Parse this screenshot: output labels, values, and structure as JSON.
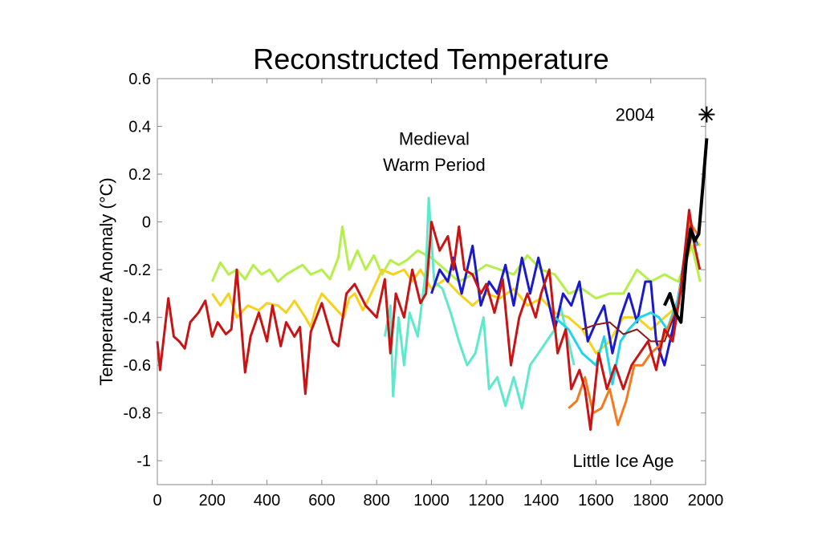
{
  "chart_data": {
    "type": "line",
    "title": "Reconstructed Temperature",
    "xlabel": "",
    "ylabel": "Temperature Anomaly (°C)",
    "xlim": [
      0,
      2000
    ],
    "ylim": [
      -1.1,
      0.6
    ],
    "xticks": [
      0,
      200,
      400,
      600,
      800,
      1000,
      1200,
      1400,
      1600,
      1800,
      2000
    ],
    "yticks": [
      0.6,
      0.4,
      0.2,
      0,
      -0.2,
      -0.4,
      -0.6,
      -0.8,
      -1
    ],
    "ytick_labels": [
      "0.6",
      "0.4",
      "0.2",
      "0",
      "-0.2",
      "-0.4",
      "-0.6",
      "-0.8",
      "-1"
    ],
    "grid": false,
    "annotations": [
      {
        "text": "Medieval",
        "x": 1010,
        "y": 0.35
      },
      {
        "text": "Warm Period",
        "x": 1010,
        "y": 0.24
      },
      {
        "text": "Little Ice Age",
        "x": 1700,
        "y": -1.0
      },
      {
        "text": "2004",
        "x": 1870,
        "y": 0.45
      }
    ],
    "marker": {
      "label": "2004",
      "x": 2004,
      "y": 0.45,
      "symbol": "asterisk"
    },
    "series": [
      {
        "name": "light-green",
        "color": "#b5f04a",
        "points": [
          [
            200,
            -0.25
          ],
          [
            230,
            -0.17
          ],
          [
            260,
            -0.22
          ],
          [
            290,
            -0.2
          ],
          [
            320,
            -0.24
          ],
          [
            350,
            -0.18
          ],
          [
            380,
            -0.22
          ],
          [
            410,
            -0.2
          ],
          [
            440,
            -0.25
          ],
          [
            470,
            -0.22
          ],
          [
            500,
            -0.2
          ],
          [
            530,
            -0.18
          ],
          [
            560,
            -0.22
          ],
          [
            600,
            -0.2
          ],
          [
            630,
            -0.24
          ],
          [
            660,
            -0.15
          ],
          [
            675,
            -0.02
          ],
          [
            700,
            -0.2
          ],
          [
            730,
            -0.12
          ],
          [
            760,
            -0.2
          ],
          [
            790,
            -0.14
          ],
          [
            820,
            -0.22
          ],
          [
            850,
            -0.16
          ],
          [
            880,
            -0.18
          ],
          [
            910,
            -0.16
          ],
          [
            950,
            -0.12
          ],
          [
            1000,
            -0.15
          ],
          [
            1050,
            -0.2
          ],
          [
            1100,
            -0.25
          ],
          [
            1150,
            -0.22
          ],
          [
            1200,
            -0.18
          ],
          [
            1250,
            -0.2
          ],
          [
            1300,
            -0.22
          ],
          [
            1350,
            -0.14
          ],
          [
            1400,
            -0.2
          ],
          [
            1450,
            -0.22
          ],
          [
            1500,
            -0.3
          ],
          [
            1550,
            -0.28
          ],
          [
            1600,
            -0.32
          ],
          [
            1650,
            -0.3
          ],
          [
            1700,
            -0.3
          ],
          [
            1750,
            -0.2
          ],
          [
            1800,
            -0.25
          ],
          [
            1850,
            -0.22
          ],
          [
            1900,
            -0.25
          ],
          [
            1950,
            -0.1
          ],
          [
            1980,
            -0.25
          ]
        ]
      },
      {
        "name": "yellow",
        "color": "#f7d21c",
        "points": [
          [
            200,
            -0.3
          ],
          [
            230,
            -0.35
          ],
          [
            260,
            -0.3
          ],
          [
            290,
            -0.4
          ],
          [
            330,
            -0.35
          ],
          [
            370,
            -0.37
          ],
          [
            400,
            -0.34
          ],
          [
            440,
            -0.35
          ],
          [
            470,
            -0.38
          ],
          [
            500,
            -0.33
          ],
          [
            540,
            -0.4
          ],
          [
            560,
            -0.44
          ],
          [
            580,
            -0.35
          ],
          [
            600,
            -0.3
          ],
          [
            640,
            -0.35
          ],
          [
            680,
            -0.4
          ],
          [
            700,
            -0.32
          ],
          [
            720,
            -0.3
          ],
          [
            750,
            -0.37
          ],
          [
            780,
            -0.3
          ],
          [
            820,
            -0.2
          ],
          [
            860,
            -0.22
          ],
          [
            900,
            -0.2
          ],
          [
            930,
            -0.25
          ],
          [
            960,
            -0.2
          ],
          [
            1000,
            -0.28
          ],
          [
            1050,
            -0.24
          ],
          [
            1100,
            -0.3
          ],
          [
            1150,
            -0.35
          ],
          [
            1200,
            -0.3
          ],
          [
            1250,
            -0.32
          ],
          [
            1300,
            -0.28
          ],
          [
            1350,
            -0.35
          ],
          [
            1400,
            -0.32
          ],
          [
            1450,
            -0.38
          ],
          [
            1500,
            -0.4
          ],
          [
            1550,
            -0.45
          ],
          [
            1600,
            -0.55
          ],
          [
            1650,
            -0.5
          ],
          [
            1700,
            -0.4
          ],
          [
            1750,
            -0.4
          ],
          [
            1800,
            -0.45
          ],
          [
            1850,
            -0.4
          ],
          [
            1900,
            -0.35
          ],
          [
            1950,
            -0.05
          ],
          [
            1980,
            -0.1
          ]
        ]
      },
      {
        "name": "turquoise",
        "color": "#5ee8cc",
        "points": [
          [
            830,
            -0.48
          ],
          [
            850,
            -0.35
          ],
          [
            860,
            -0.73
          ],
          [
            880,
            -0.4
          ],
          [
            900,
            -0.6
          ],
          [
            920,
            -0.38
          ],
          [
            950,
            -0.48
          ],
          [
            980,
            -0.2
          ],
          [
            990,
            0.1
          ],
          [
            1010,
            -0.25
          ],
          [
            1040,
            -0.28
          ],
          [
            1070,
            -0.38
          ],
          [
            1100,
            -0.5
          ],
          [
            1130,
            -0.6
          ],
          [
            1160,
            -0.55
          ],
          [
            1190,
            -0.4
          ],
          [
            1210,
            -0.7
          ],
          [
            1240,
            -0.65
          ],
          [
            1270,
            -0.77
          ],
          [
            1300,
            -0.65
          ],
          [
            1330,
            -0.78
          ],
          [
            1360,
            -0.6
          ],
          [
            1390,
            -0.55
          ],
          [
            1420,
            -0.5
          ],
          [
            1450,
            -0.45
          ],
          [
            1470,
            -0.35
          ],
          [
            1500,
            -0.5
          ],
          [
            1520,
            -0.6
          ]
        ]
      },
      {
        "name": "blue",
        "color": "#1a1acc",
        "points": [
          [
            1000,
            -0.3
          ],
          [
            1030,
            -0.2
          ],
          [
            1060,
            -0.25
          ],
          [
            1080,
            -0.15
          ],
          [
            1110,
            -0.3
          ],
          [
            1150,
            -0.1
          ],
          [
            1180,
            -0.35
          ],
          [
            1210,
            -0.25
          ],
          [
            1240,
            -0.3
          ],
          [
            1270,
            -0.18
          ],
          [
            1300,
            -0.35
          ],
          [
            1330,
            -0.15
          ],
          [
            1360,
            -0.3
          ],
          [
            1390,
            -0.15
          ],
          [
            1420,
            -0.3
          ],
          [
            1450,
            -0.45
          ],
          [
            1480,
            -0.3
          ],
          [
            1510,
            -0.35
          ],
          [
            1540,
            -0.25
          ],
          [
            1570,
            -0.5
          ],
          [
            1600,
            -0.42
          ],
          [
            1630,
            -0.35
          ],
          [
            1660,
            -0.55
          ],
          [
            1690,
            -0.4
          ],
          [
            1720,
            -0.3
          ],
          [
            1750,
            -0.42
          ],
          [
            1780,
            -0.25
          ],
          [
            1800,
            -0.25
          ],
          [
            1820,
            -0.5
          ],
          [
            1850,
            -0.6
          ],
          [
            1880,
            -0.45
          ],
          [
            1910,
            -0.25
          ],
          [
            1940,
            0
          ],
          [
            1970,
            -0.1
          ]
        ]
      },
      {
        "name": "cyan",
        "color": "#22d4ee",
        "points": [
          [
            1450,
            -0.4
          ],
          [
            1500,
            -0.45
          ],
          [
            1550,
            -0.55
          ],
          [
            1600,
            -0.6
          ],
          [
            1630,
            -0.48
          ],
          [
            1660,
            -0.68
          ],
          [
            1690,
            -0.5
          ],
          [
            1720,
            -0.45
          ],
          [
            1760,
            -0.4
          ],
          [
            1800,
            -0.38
          ],
          [
            1830,
            -0.4
          ],
          [
            1860,
            -0.45
          ],
          [
            1900,
            -0.32
          ],
          [
            1940,
            -0.05
          ],
          [
            1970,
            -0.1
          ]
        ]
      },
      {
        "name": "orange",
        "color": "#f47a20",
        "points": [
          [
            1500,
            -0.78
          ],
          [
            1530,
            -0.75
          ],
          [
            1560,
            -0.65
          ],
          [
            1590,
            -0.8
          ],
          [
            1620,
            -0.78
          ],
          [
            1650,
            -0.7
          ],
          [
            1680,
            -0.85
          ],
          [
            1710,
            -0.75
          ],
          [
            1740,
            -0.6
          ],
          [
            1770,
            -0.6
          ],
          [
            1800,
            -0.55
          ],
          [
            1830,
            -0.52
          ],
          [
            1860,
            -0.45
          ],
          [
            1900,
            -0.35
          ],
          [
            1940,
            0
          ],
          [
            1970,
            -0.05
          ]
        ]
      },
      {
        "name": "brown",
        "color": "#8b1a1a",
        "points": [
          [
            1550,
            -0.45
          ],
          [
            1600,
            -0.43
          ],
          [
            1650,
            -0.42
          ],
          [
            1700,
            -0.47
          ],
          [
            1750,
            -0.45
          ],
          [
            1800,
            -0.5
          ],
          [
            1850,
            -0.5
          ],
          [
            1900,
            -0.35
          ],
          [
            1950,
            -0.05
          ]
        ]
      },
      {
        "name": "dark-red",
        "color": "#c81414",
        "points": [
          [
            0,
            -0.5
          ],
          [
            10,
            -0.62
          ],
          [
            40,
            -0.32
          ],
          [
            60,
            -0.48
          ],
          [
            80,
            -0.5
          ],
          [
            100,
            -0.53
          ],
          [
            120,
            -0.42
          ],
          [
            150,
            -0.38
          ],
          [
            175,
            -0.33
          ],
          [
            200,
            -0.48
          ],
          [
            220,
            -0.42
          ],
          [
            250,
            -0.47
          ],
          [
            270,
            -0.45
          ],
          [
            290,
            -0.2
          ],
          [
            320,
            -0.63
          ],
          [
            340,
            -0.48
          ],
          [
            370,
            -0.38
          ],
          [
            400,
            -0.5
          ],
          [
            420,
            -0.35
          ],
          [
            450,
            -0.52
          ],
          [
            470,
            -0.42
          ],
          [
            500,
            -0.48
          ],
          [
            520,
            -0.44
          ],
          [
            540,
            -0.72
          ],
          [
            560,
            -0.46
          ],
          [
            600,
            -0.34
          ],
          [
            640,
            -0.5
          ],
          [
            660,
            -0.52
          ],
          [
            690,
            -0.3
          ],
          [
            720,
            -0.26
          ],
          [
            760,
            -0.35
          ],
          [
            800,
            -0.4
          ],
          [
            830,
            -0.24
          ],
          [
            850,
            -0.55
          ],
          [
            870,
            -0.3
          ],
          [
            900,
            -0.4
          ],
          [
            930,
            -0.2
          ],
          [
            960,
            -0.34
          ],
          [
            980,
            -0.3
          ],
          [
            1000,
            0
          ],
          [
            1030,
            -0.12
          ],
          [
            1060,
            -0.06
          ],
          [
            1080,
            -0.2
          ],
          [
            1100,
            -0.02
          ],
          [
            1120,
            -0.2
          ],
          [
            1150,
            -0.22
          ],
          [
            1180,
            -0.3
          ],
          [
            1200,
            -0.26
          ],
          [
            1230,
            -0.38
          ],
          [
            1260,
            -0.24
          ],
          [
            1290,
            -0.6
          ],
          [
            1320,
            -0.4
          ],
          [
            1350,
            -0.3
          ],
          [
            1380,
            -0.4
          ],
          [
            1400,
            -0.3
          ],
          [
            1430,
            -0.2
          ],
          [
            1460,
            -0.55
          ],
          [
            1490,
            -0.45
          ],
          [
            1510,
            -0.7
          ],
          [
            1540,
            -0.62
          ],
          [
            1560,
            -0.7
          ],
          [
            1580,
            -0.87
          ],
          [
            1610,
            -0.55
          ],
          [
            1640,
            -0.7
          ],
          [
            1670,
            -0.6
          ],
          [
            1700,
            -0.7
          ],
          [
            1730,
            -0.6
          ],
          [
            1760,
            -0.55
          ],
          [
            1790,
            -0.5
          ],
          [
            1820,
            -0.62
          ],
          [
            1850,
            -0.45
          ],
          [
            1880,
            -0.5
          ],
          [
            1910,
            -0.28
          ],
          [
            1940,
            0.05
          ],
          [
            1960,
            -0.1
          ],
          [
            1979,
            -0.2
          ]
        ]
      },
      {
        "name": "instrumental-black",
        "color": "#000000",
        "points": [
          [
            1850,
            -0.35
          ],
          [
            1870,
            -0.3
          ],
          [
            1890,
            -0.38
          ],
          [
            1910,
            -0.42
          ],
          [
            1930,
            -0.15
          ],
          [
            1945,
            -0.03
          ],
          [
            1960,
            -0.08
          ],
          [
            1975,
            -0.05
          ],
          [
            1990,
            0.15
          ],
          [
            2004,
            0.35
          ]
        ]
      }
    ]
  }
}
